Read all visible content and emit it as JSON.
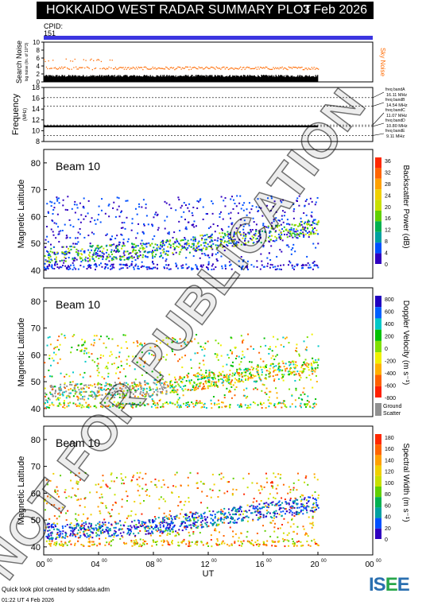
{
  "header": {
    "title": "HOKKAIDO WEST RADAR SUMMARY PLOT",
    "date": "3 Feb 2026",
    "cpid_label": "CPID:",
    "cpid_value": "151"
  },
  "panels": {
    "noise": {
      "ylabel_line1": "Search Noise",
      "ylabel_line2": "log noise (lin. of 10^3)",
      "side_label": "Sky Noise",
      "ticks": [
        "10",
        "8",
        "6",
        "4",
        "2",
        "0"
      ],
      "ylim": [
        0,
        10
      ]
    },
    "frequency": {
      "ylabel": "Frequency",
      "yunit": "(MHz)",
      "ticks": [
        "18",
        "16",
        "14",
        "12",
        "10",
        "8"
      ],
      "ylim": [
        8,
        18
      ],
      "bands": [
        {
          "name": "freq bandA",
          "value": "16.11 MHz",
          "mhz": 16.11
        },
        {
          "name": "freq bandB",
          "value": "14.54 MHz",
          "mhz": 14.54
        },
        {
          "name": "freq bandC",
          "value": "11.07 MHz",
          "mhz": 11.07
        },
        {
          "name": "freq bandD",
          "value": "10.80 MHz",
          "mhz": 10.8
        },
        {
          "name": "freq bandE",
          "value": "9.11 MHz",
          "mhz": 9.11
        }
      ]
    },
    "power": {
      "beam": "Beam 10",
      "ylabel": "Magnetic Latitude",
      "cbar_label": "Backscatter Power (dB)",
      "cbar_ticks": [
        "36",
        "32",
        "28",
        "24",
        "20",
        "16",
        "12",
        "8",
        "4",
        "0"
      ]
    },
    "velocity": {
      "beam": "Beam 10",
      "ylabel": "Magnetic Latitude",
      "cbar_label": "Doppler Velocity (m s⁻¹)",
      "cbar_ticks": [
        "800",
        "600",
        "400",
        "200",
        "0",
        "-200",
        "-400",
        "-600",
        "-800"
      ],
      "ground_label_1": "Ground",
      "ground_label_2": "Scatter"
    },
    "width": {
      "beam": "Beam 10",
      "ylabel": "Magnetic Latitude",
      "cbar_label": "Spectral Width (m s⁻¹)",
      "cbar_ticks": [
        "180",
        "160",
        "140",
        "120",
        "100",
        "80",
        "60",
        "40",
        "20",
        "0"
      ]
    }
  },
  "chart_data": {
    "type": "heatmap",
    "x_axis": {
      "label": "UT",
      "ticks": [
        "00",
        "04",
        "08",
        "12",
        "16",
        "20",
        "00"
      ],
      "tick_sup": "00",
      "range_hours": [
        0,
        24
      ],
      "data_end_hours": 20
    },
    "y_axis": {
      "label": "Magnetic Latitude",
      "ticks": [
        "80",
        "70",
        "60",
        "50",
        "40"
      ],
      "ylim": [
        37,
        85
      ]
    },
    "colors": {
      "cbar_power": [
        "#ff2800",
        "#ff6400",
        "#ffa000",
        "#f0d000",
        "#c8e000",
        "#60d000",
        "#00b050",
        "#00a0a0",
        "#0050ff",
        "#3000c0"
      ],
      "cbar_velocity": [
        "#2000c0",
        "#0060ff",
        "#00c8c8",
        "#00c000",
        "#80e000",
        "#f0f000",
        "#ffb000",
        "#ff6000",
        "#ff2000"
      ],
      "ground": "#909090",
      "noise_sky": "#ff6a00",
      "cpid": "#3b35e0"
    }
  },
  "watermark": "NOT FOR PUBLICATION",
  "footer": {
    "credit": "Quick look plot created by sddata.adm",
    "stamp": "01:22 UT  4 Feb 2026",
    "logo": "ISEE"
  }
}
